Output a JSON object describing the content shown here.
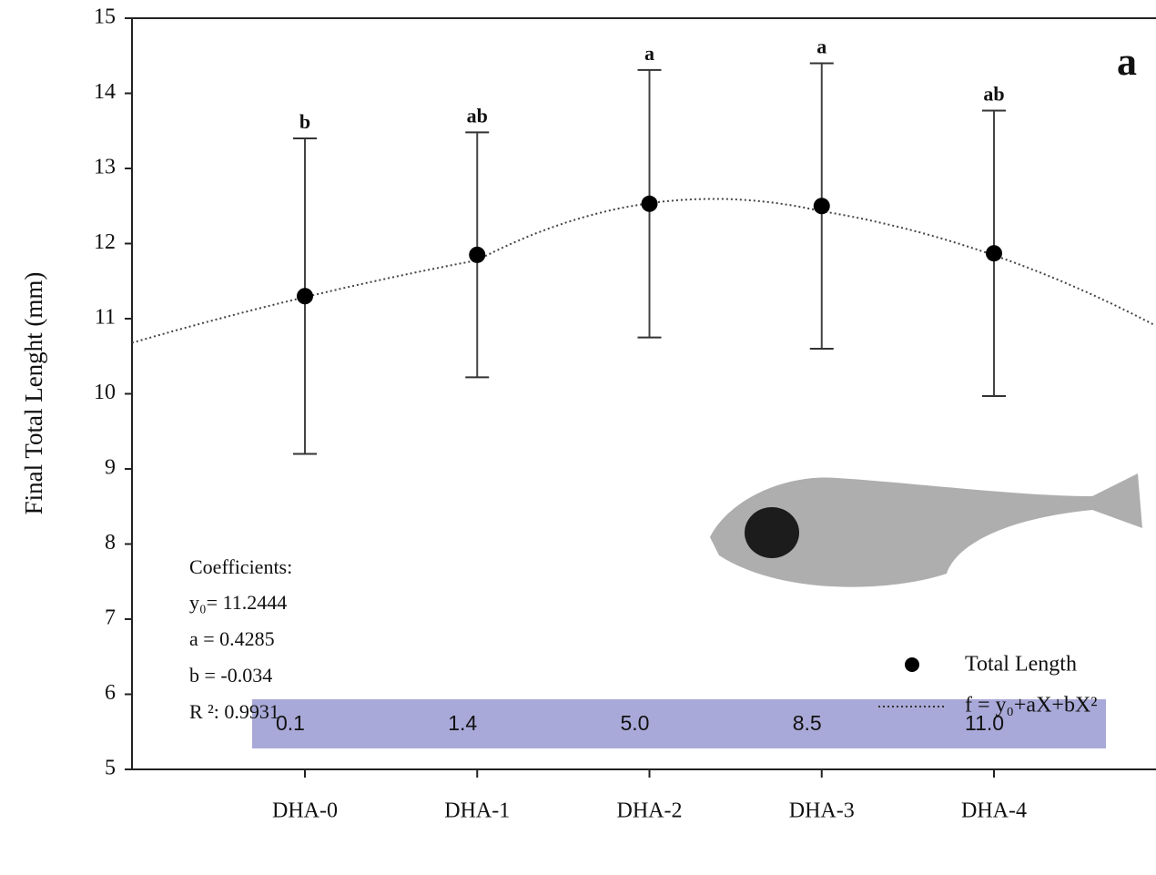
{
  "chart_data": {
    "type": "errorbar",
    "title": "a",
    "ylabel": "Final Total Lenght (mm)",
    "categories": [
      "DHA-0",
      "DHA-1",
      "DHA-2",
      "DHA-3",
      "DHA-4"
    ],
    "series": [
      {
        "name": "Total Length",
        "color": "#000000",
        "values": [
          11.3,
          11.85,
          12.53,
          12.5,
          11.87
        ],
        "errors": [
          2.1,
          1.63,
          1.78,
          1.9,
          1.9
        ],
        "significance": [
          "b",
          "ab",
          "a",
          "a",
          "ab"
        ]
      }
    ],
    "fit": {
      "name": "f = y₀+aX+bX²",
      "coefficients_title": "Coefficients:",
      "coefficients": [
        {
          "label": "y₀=",
          "value": 11.2444
        },
        {
          "label": "a =",
          "value": 0.4285
        },
        {
          "label": "b =",
          "value": -0.034
        },
        {
          "label": "R ²:",
          "value": 0.9931
        }
      ]
    },
    "dha_levels": [
      0.1,
      1.4,
      {
        "value": 5,
        "label": "5.0"
      },
      8.5,
      {
        "value": 11,
        "label": "11.0"
      }
    ],
    "ylim": [
      5,
      15
    ],
    "yticks": [
      5,
      6,
      7,
      8,
      9,
      10,
      11,
      12,
      13,
      14,
      15
    ]
  }
}
